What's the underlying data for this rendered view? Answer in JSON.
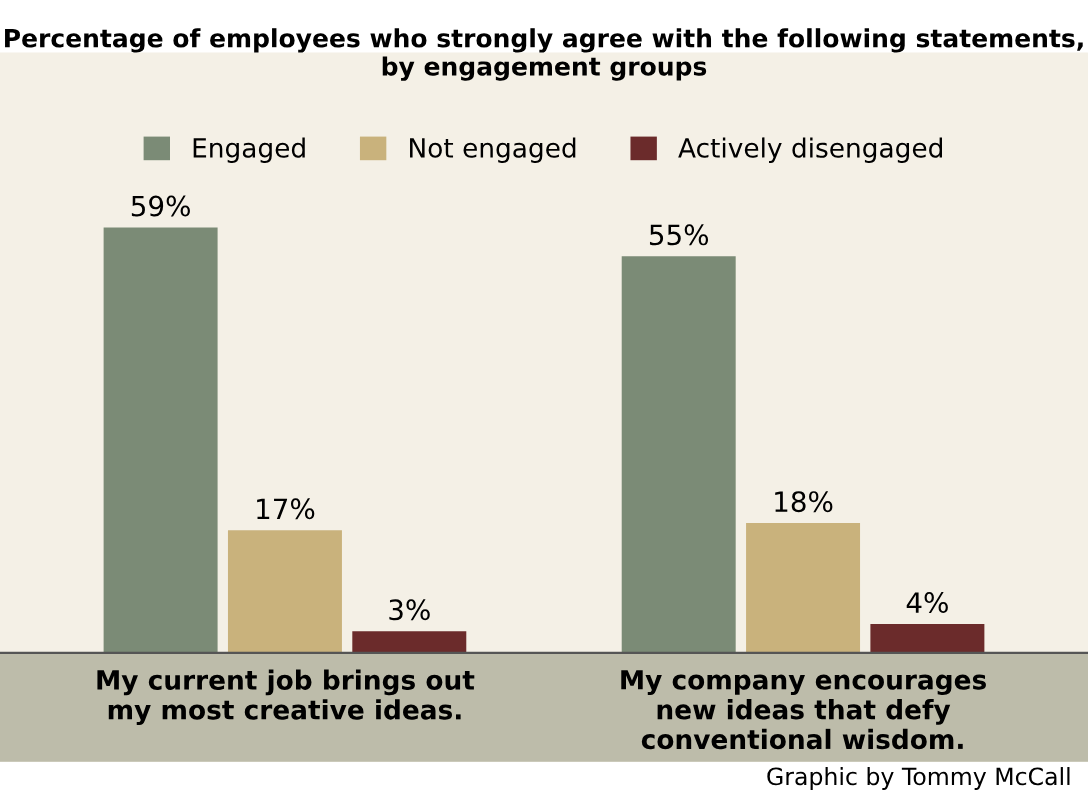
{
  "chart_data": {
    "type": "bar",
    "title": "Percentage of employees who strongly agree with the following statements,\nby engagement groups",
    "categories": [
      "My current job brings out\nmy most creative ideas.",
      "My company encourages\nnew ideas that defy\nconventional wisdom."
    ],
    "series": [
      {
        "name": "Engaged",
        "color": "#7b8b76",
        "values": [
          59,
          55
        ],
        "value_labels": [
          "59%",
          "55%"
        ]
      },
      {
        "name": "Not engaged",
        "color": "#c9b27c",
        "values": [
          17,
          18
        ],
        "value_labels": [
          "17%",
          "18%"
        ]
      },
      {
        "name": "Actively disengaged",
        "color": "#6b2b2b",
        "values": [
          3,
          4
        ],
        "value_labels": [
          "3%",
          "4%"
        ]
      }
    ],
    "legend": "top",
    "grid": false,
    "annotations": [
      "Graphic by Tommy McCall"
    ]
  }
}
